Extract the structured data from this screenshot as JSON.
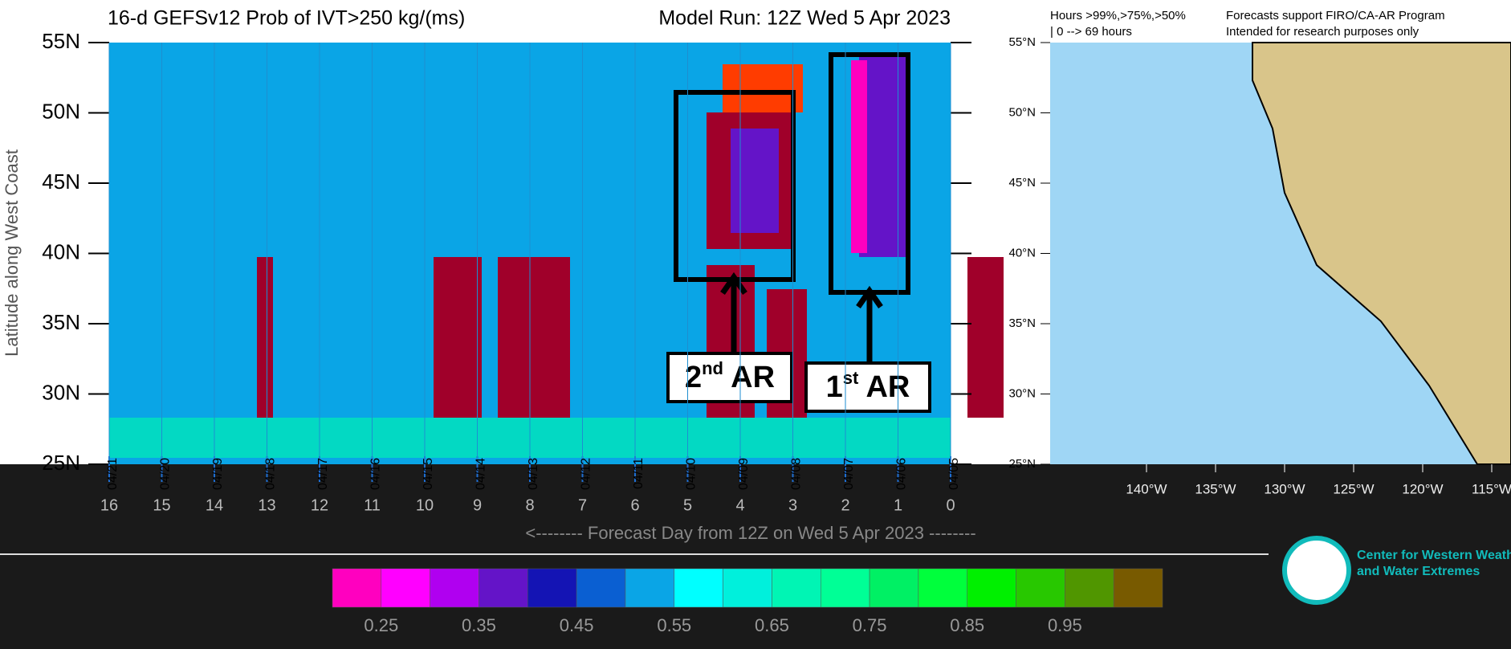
{
  "chart_data": {
    "type": "hovmoller",
    "title": "16-d GEFSv12 Prob of IVT>250 kg/(ms)",
    "subtitle": "Model Run: 12Z Wed 5 Apr 2023",
    "y_label": "Latitude along West Coast",
    "x_label": "<-------- Forecast Day from 12Z on Wed 5 Apr 2023 --------",
    "xlim": [
      16,
      0
    ],
    "ylim": [
      25,
      55
    ],
    "yticks": [
      {
        "value": 55,
        "label": "55N"
      },
      {
        "value": 50,
        "label": "50N"
      },
      {
        "value": 45,
        "label": "45N"
      },
      {
        "value": 40,
        "label": "40N"
      },
      {
        "value": 35,
        "label": "35N"
      },
      {
        "value": 30,
        "label": "30N"
      },
      {
        "value": 25,
        "label": "25N"
      }
    ],
    "xticks": [
      {
        "value": 16,
        "label": "04/21"
      },
      {
        "value": 15,
        "label": "04/20"
      },
      {
        "value": 14,
        "label": "04/19"
      },
      {
        "value": 13,
        "label": "04/18"
      },
      {
        "value": 12,
        "label": "04/17"
      },
      {
        "value": 11,
        "label": "04/16"
      },
      {
        "value": 10,
        "label": "04/15"
      },
      {
        "value": 9,
        "label": "04/14"
      },
      {
        "value": 8,
        "label": "04/13"
      },
      {
        "value": 7,
        "label": "04/12"
      },
      {
        "value": 6,
        "label": "04/11"
      },
      {
        "value": 5,
        "label": "04/10"
      },
      {
        "value": 4,
        "label": "04/09"
      },
      {
        "value": 3,
        "label": "04/08"
      },
      {
        "value": 2,
        "label": "04/07"
      },
      {
        "value": 1,
        "label": "04/06"
      },
      {
        "value": 0,
        "label": "04/05"
      }
    ],
    "xticks_days": [
      16,
      15,
      14,
      13,
      12,
      11,
      10,
      9,
      8,
      7,
      6,
      5,
      4,
      3,
      2,
      1,
      0
    ],
    "annotations": [
      {
        "number": "2",
        "suffix": "nd",
        "text": "AR"
      },
      {
        "number": "1",
        "suffix": "st",
        "text": "AR"
      }
    ],
    "colorbar": {
      "lim": [
        0.2,
        1.05
      ],
      "colors": [
        "#ff00bf",
        "#ff00ff",
        "#b000f0",
        "#6414c8",
        "#1414b4",
        "#0a5fd2",
        "#0aa5e6",
        "#00ffff",
        "#00f0dc",
        "#00f5b4",
        "#00ff96",
        "#00f064",
        "#00ff3c",
        "#00f000",
        "#28c800",
        "#509600",
        "#785a00"
      ],
      "ticks": [
        0.25,
        0.35,
        0.45,
        0.55,
        0.65,
        0.75,
        0.85,
        0.95
      ]
    },
    "map": {
      "header": [
        "Hours >99%,>75%,>50%",
        "| 0 --> 69 hours"
      ],
      "notes": [
        "Forecasts support FIRO/CA-AR Program",
        "Intended for research purposes only"
      ],
      "lat_ticks": [
        {
          "value": 55,
          "label": "55°N"
        },
        {
          "value": 50,
          "label": "50°N"
        },
        {
          "value": 45,
          "label": "45°N"
        },
        {
          "value": 40,
          "label": "40°N"
        },
        {
          "value": 35,
          "label": "35°N"
        },
        {
          "value": 30,
          "label": "30°N"
        },
        {
          "value": 25,
          "label": "25°N"
        }
      ],
      "lon_ticks": [
        {
          "value": -140,
          "label": "140°W"
        },
        {
          "value": -135,
          "label": "135°W"
        },
        {
          "value": -130,
          "label": "130°W"
        },
        {
          "value": -125,
          "label": "125°W"
        },
        {
          "value": -120,
          "label": "120°W"
        },
        {
          "value": -115,
          "label": "115°W"
        }
      ]
    },
    "logo": [
      "Center for Western Weather",
      "and Water Extremes"
    ]
  }
}
